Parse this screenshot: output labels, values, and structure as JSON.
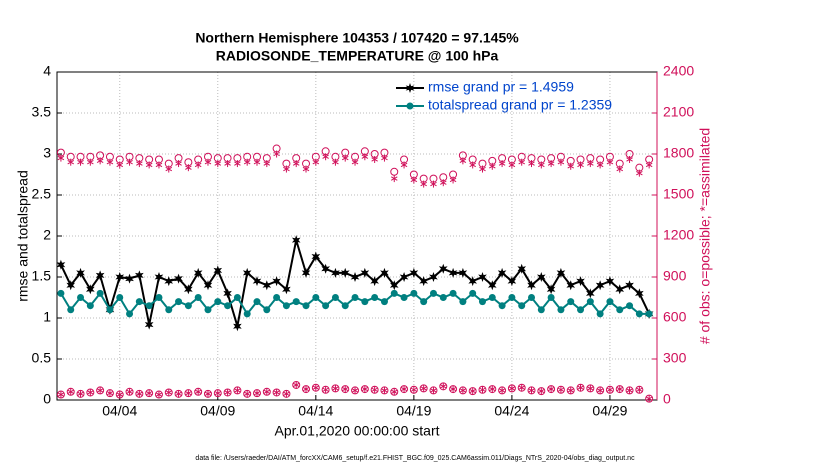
{
  "chart_data": {
    "type": "line",
    "title": "Northern Hemisphere 104353 / 107420 = 97.145%",
    "subtitle": "RADIOSONDE_TEMPERATURE @ 100 hPa",
    "xlabel": "Apr.01,2020 00:00:00 start",
    "ylabel": "rmse and totalspread",
    "y2label": "# of obs: o=possible; *=assimilated",
    "footnote": "data file: /Users/raeder/DAI/ATM_forcXX/CAM6_setup/f.e21.FHIST_BGC.f09_025.CAM6assim.011/Diags_NTrS_2020-04/obs_diag_output.nc",
    "x": [
      1,
      1.5,
      2,
      2.5,
      3,
      3.5,
      4,
      4.5,
      5,
      5.5,
      6,
      6.5,
      7,
      7.5,
      8,
      8.5,
      9,
      9.5,
      10,
      10.5,
      11,
      11.5,
      12,
      12.5,
      13,
      13.5,
      14,
      14.5,
      15,
      15.5,
      16,
      16.5,
      17,
      17.5,
      18,
      18.5,
      19,
      19.5,
      20,
      20.5,
      21,
      21.5,
      22,
      22.5,
      23,
      23.5,
      24,
      24.5,
      25,
      25.5,
      26,
      26.5,
      27,
      27.5,
      28,
      28.5,
      29,
      29.5,
      30,
      30.5,
      31
    ],
    "xlim": [
      0.8,
      31.4
    ],
    "xticks": [
      {
        "value": 4,
        "label": "04/04"
      },
      {
        "value": 9,
        "label": "04/09"
      },
      {
        "value": 14,
        "label": "04/14"
      },
      {
        "value": 19,
        "label": "04/19"
      },
      {
        "value": 24,
        "label": "04/24"
      },
      {
        "value": 29,
        "label": "04/29"
      }
    ],
    "ylim": [
      0,
      4
    ],
    "yticks": [
      0,
      0.5,
      1,
      1.5,
      2,
      2.5,
      3,
      3.5,
      4
    ],
    "y2lim": [
      0,
      2400
    ],
    "y2ticks": [
      0,
      300,
      600,
      900,
      1200,
      1500,
      1800,
      2100,
      2400
    ],
    "grid": true,
    "legend": "upper right",
    "series": [
      {
        "name": "rmse grand pr = 1.4959",
        "color": "#000000",
        "marker": "star",
        "values": [
          1.65,
          1.4,
          1.55,
          1.35,
          1.52,
          1.1,
          1.5,
          1.48,
          1.52,
          0.92,
          1.5,
          1.45,
          1.48,
          1.35,
          1.55,
          1.4,
          1.58,
          1.3,
          0.9,
          1.55,
          1.45,
          1.4,
          1.45,
          1.35,
          1.95,
          1.55,
          1.75,
          1.6,
          1.55,
          1.55,
          1.5,
          1.55,
          1.45,
          1.55,
          1.4,
          1.5,
          1.55,
          1.45,
          1.5,
          1.6,
          1.55,
          1.55,
          1.45,
          1.5,
          1.4,
          1.55,
          1.45,
          1.6,
          1.4,
          1.5,
          1.35,
          1.55,
          1.4,
          1.45,
          1.3,
          1.4,
          1.45,
          1.35,
          1.4,
          1.3,
          1.05
        ]
      },
      {
        "name": "totalspread grand pr = 1.2359",
        "color": "#008080",
        "marker": "circle",
        "values": [
          1.3,
          1.1,
          1.25,
          1.15,
          1.3,
          1.1,
          1.25,
          1.05,
          1.2,
          1.15,
          1.25,
          1.1,
          1.2,
          1.15,
          1.25,
          1.1,
          1.2,
          1.15,
          1.25,
          1.05,
          1.2,
          1.1,
          1.25,
          1.15,
          1.2,
          1.15,
          1.25,
          1.15,
          1.25,
          1.15,
          1.25,
          1.2,
          1.25,
          1.2,
          1.3,
          1.25,
          1.3,
          1.2,
          1.3,
          1.25,
          1.3,
          1.2,
          1.3,
          1.2,
          1.25,
          1.15,
          1.25,
          1.15,
          1.25,
          1.1,
          1.25,
          1.1,
          1.2,
          1.1,
          1.2,
          1.05,
          1.2,
          1.1,
          1.15,
          1.05,
          1.05
        ]
      },
      {
        "axis": "y2",
        "color": "#d0105a",
        "marker": "open-circle",
        "values": [
          1810,
          1780,
          1780,
          1780,
          1790,
          1780,
          1760,
          1780,
          1770,
          1760,
          1760,
          1730,
          1770,
          1740,
          1760,
          1780,
          1770,
          1770,
          1770,
          1780,
          1780,
          1770,
          1840,
          1730,
          1770,
          1730,
          1780,
          1820,
          1780,
          1810,
          1780,
          1820,
          1800,
          1810,
          1670,
          1760,
          1650,
          1620,
          1620,
          1630,
          1650,
          1790,
          1760,
          1730,
          1750,
          1770,
          1760,
          1780,
          1770,
          1760,
          1770,
          1780,
          1750,
          1760,
          1770,
          1760,
          1780,
          1730,
          1800,
          1700,
          1760
        ]
      },
      {
        "axis": "y2",
        "color": "#d0105a",
        "marker": "asterisk",
        "values": [
          1770,
          1740,
          1740,
          1740,
          1750,
          1740,
          1720,
          1740,
          1730,
          1720,
          1720,
          1690,
          1730,
          1700,
          1720,
          1740,
          1730,
          1730,
          1730,
          1740,
          1740,
          1730,
          1800,
          1690,
          1730,
          1690,
          1740,
          1780,
          1740,
          1770,
          1740,
          1780,
          1760,
          1770,
          1620,
          1720,
          1610,
          1580,
          1580,
          1590,
          1610,
          1750,
          1720,
          1690,
          1710,
          1730,
          1720,
          1740,
          1730,
          1720,
          1730,
          1740,
          1710,
          1720,
          1730,
          1720,
          1740,
          1690,
          1760,
          1660,
          1720
        ]
      },
      {
        "axis": "y2",
        "color": "#d0105a",
        "marker": "circle-star",
        "values": [
          40,
          60,
          45,
          55,
          70,
          50,
          40,
          60,
          45,
          50,
          40,
          55,
          45,
          50,
          60,
          45,
          50,
          55,
          70,
          45,
          50,
          60,
          55,
          45,
          110,
          80,
          90,
          75,
          85,
          80,
          70,
          80,
          75,
          70,
          60,
          80,
          75,
          85,
          70,
          100,
          80,
          70,
          65,
          75,
          80,
          70,
          85,
          90,
          70,
          65,
          80,
          75,
          70,
          90,
          85,
          70,
          75,
          80,
          70,
          75,
          10
        ]
      }
    ]
  }
}
